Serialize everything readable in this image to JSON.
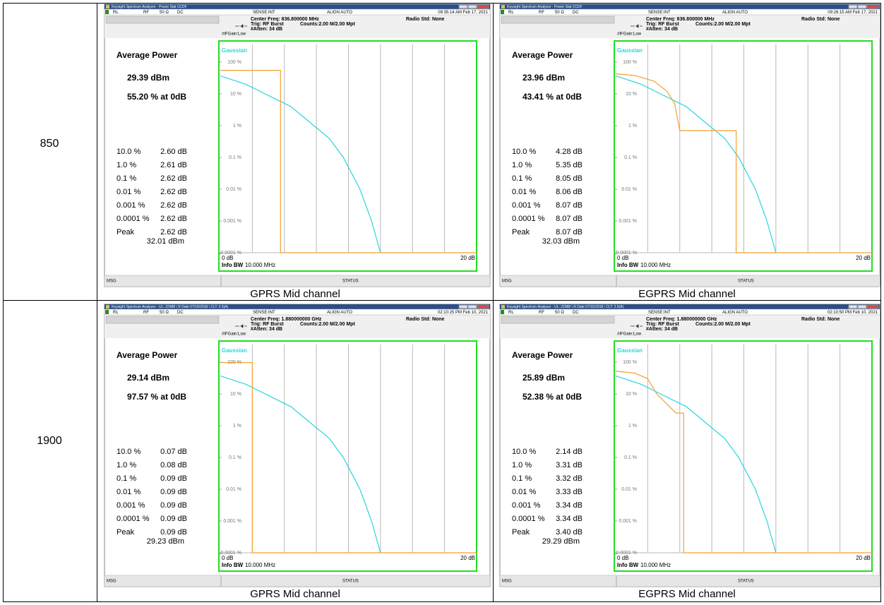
{
  "rows": [
    {
      "label": "850",
      "panels": [
        {
          "window_title": "Keysight Spectrum Analyzer - Power Stat CCDF",
          "rl": "RL",
          "rf": "RF",
          "impedance": "50 Ω",
          "coupling": "DC",
          "sense": "SENSE:INT",
          "align": "ALIGN AUTO",
          "time": "09:35:14 AM Feb 17, 2021",
          "center_freq": "Center Freq: 836.800000 MHz",
          "trig": "Trig: RF Burst",
          "counts": "Counts:2.00 M/2.00 Mpt",
          "radio_std": "Radio Std: None",
          "if_gain": "#IFGain:Low",
          "atten": "#Atten: 34 dB",
          "average_power_title": "Average Power",
          "average_power": "29.39 dBm",
          "at_0db": "55.20 % at 0dB",
          "stats": [
            [
              "10.0 %",
              "2.60 dB"
            ],
            [
              "1.0 %",
              "2.61 dB"
            ],
            [
              "0.1 %",
              "2.62 dB"
            ],
            [
              "0.01 %",
              "2.62 dB"
            ],
            [
              "0.001 %",
              "2.62 dB"
            ],
            [
              "0.0001 %",
              "2.62 dB"
            ]
          ],
          "peak_label": "Peak",
          "peak_db": "2.62 dB",
          "peak_dbm": "32.01 dBm",
          "info_bw_label": "Info BW",
          "info_bw": "10.000 MHz",
          "msg": "MSG",
          "status": "STATUS",
          "caption": "GPRS Mid channel",
          "chart_data": {
            "type": "line",
            "y_scale": "log",
            "xlim": [
              0,
              20
            ],
            "ylim": [
              0.0001,
              100
            ],
            "xticks": [
              {
                "value": 0,
                "label": "0 dB"
              },
              {
                "value": 20,
                "label": "20 dB"
              }
            ],
            "yticks": [
              {
                "value": 100,
                "label": "100 %"
              },
              {
                "value": 10,
                "label": "10 %"
              },
              {
                "value": 1,
                "label": "1 %"
              },
              {
                "value": 0.1,
                "label": "0.1 %"
              },
              {
                "value": 0.01,
                "label": "0.01 %"
              },
              {
                "value": 0.001,
                "label": "0.001 %"
              },
              {
                "value": 0.0001,
                "label": "0.0001 %"
              }
            ],
            "series": [
              {
                "name": "Gaussian",
                "color": "#2ad4e0",
                "x": [
                  0,
                  2,
                  3.5,
                  5.5,
                  7.3,
                  8.5,
                  9.6,
                  10.9,
                  11.8,
                  12.5
                ],
                "values": [
                  37,
                  20,
                  10,
                  4,
                  1,
                  0.4,
                  0.1,
                  0.01,
                  0.001,
                  0.0001
                ]
              },
              {
                "color": "#f5a030",
                "x": [
                  0,
                  4.7,
                  4.7,
                  20
                ],
                "values": [
                  55.2,
                  55.2,
                  0.0001,
                  0.0001
                ]
              }
            ]
          }
        },
        {
          "window_title": "Keysight Spectrum Analyzer - Power Stat CCDF",
          "rl": "RL",
          "rf": "RF",
          "impedance": "50 Ω",
          "coupling": "DC",
          "sense": "SENSE:INT",
          "align": "ALIGN AUTO",
          "time": "09:26:15 AM Feb 17, 2021",
          "center_freq": "Center Freq: 836.800000 MHz",
          "trig": "Trig: RF Burst",
          "counts": "Counts:2.00 M/2.00 Mpt",
          "radio_std": "Radio Std: None",
          "if_gain": "#IFGain:Low",
          "atten": "#Atten: 34 dB",
          "average_power_title": "Average Power",
          "average_power": "23.96 dBm",
          "at_0db": "43.41 % at 0dB",
          "stats": [
            [
              "10.0 %",
              "4.28 dB"
            ],
            [
              "1.0 %",
              "5.35 dB"
            ],
            [
              "0.1 %",
              "8.05 dB"
            ],
            [
              "0.01 %",
              "8.06 dB"
            ],
            [
              "0.001 %",
              "8.07 dB"
            ],
            [
              "0.0001 %",
              "8.07 dB"
            ]
          ],
          "peak_label": "Peak",
          "peak_db": "8.07 dB",
          "peak_dbm": "32.03 dBm",
          "info_bw_label": "Info BW",
          "info_bw": "10.000 MHz",
          "msg": "MSG",
          "status": "STATUS",
          "caption": "EGPRS Mid channel",
          "chart_data": {
            "type": "line",
            "y_scale": "log",
            "xlim": [
              0,
              20
            ],
            "ylim": [
              0.0001,
              100
            ],
            "xticks": [
              {
                "value": 0,
                "label": "0 dB"
              },
              {
                "value": 20,
                "label": "20 dB"
              }
            ],
            "yticks": [
              {
                "value": 100,
                "label": "100 %"
              },
              {
                "value": 10,
                "label": "10 %"
              },
              {
                "value": 1,
                "label": "1 %"
              },
              {
                "value": 0.1,
                "label": "0.1 %"
              },
              {
                "value": 0.01,
                "label": "0.01 %"
              },
              {
                "value": 0.001,
                "label": "0.001 %"
              },
              {
                "value": 0.0001,
                "label": "0.0001 %"
              }
            ],
            "series": [
              {
                "name": "Gaussian",
                "color": "#2ad4e0",
                "x": [
                  0,
                  2,
                  3.5,
                  5.5,
                  7.3,
                  8.5,
                  9.6,
                  10.9,
                  11.8,
                  12.5
                ],
                "values": [
                  37,
                  20,
                  10,
                  4,
                  1,
                  0.4,
                  0.1,
                  0.01,
                  0.001,
                  0.0001
                ]
              },
              {
                "color": "#f5a030",
                "x": [
                  0,
                  1.5,
                  3,
                  4,
                  4.6,
                  5,
                  7.1,
                  9.4,
                  9.4,
                  20
                ],
                "values": [
                  43,
                  38,
                  25,
                  12,
                  5,
                  0.7,
                  0.7,
                  0.7,
                  0.0001,
                  0.0001
                ]
              }
            ]
          }
        }
      ]
    },
    {
      "label": "1900",
      "panels": [
        {
          "window_title": "Keysight Spectrum Analyzer - UL: 22988 \\ R Date 07/15/2018 \\ CLT: 2.5(A)",
          "rl": "RL",
          "rf": "RF",
          "impedance": "50 Ω",
          "coupling": "DC",
          "sense": "SENSE:INT",
          "align": "ALIGN AUTO",
          "time": "02:10:25 PM Feb 10, 2021",
          "center_freq": "Center Freq: 1.880000000 GHz",
          "trig": "Trig: RF Burst",
          "counts": "Counts:2.00 M/2.00 Mpt",
          "radio_std": "Radio Std: None",
          "if_gain": "#IFGain:Low",
          "atten": "#Atten: 34 dB",
          "average_power_title": "Average Power",
          "average_power": "29.14 dBm",
          "at_0db": "97.57 % at 0dB",
          "stats": [
            [
              "10.0 %",
              "0.07 dB"
            ],
            [
              "1.0 %",
              "0.08 dB"
            ],
            [
              "0.1 %",
              "0.09 dB"
            ],
            [
              "0.01 %",
              "0.09 dB"
            ],
            [
              "0.001 %",
              "0.09 dB"
            ],
            [
              "0.0001 %",
              "0.09 dB"
            ]
          ],
          "peak_label": "Peak",
          "peak_db": "0.09 dB",
          "peak_dbm": "29.23 dBm",
          "info_bw_label": "Info BW",
          "info_bw": "10.000 MHz",
          "msg": "MSG",
          "status": "STATUS",
          "caption": "GPRS Mid channel",
          "chart_data": {
            "type": "line",
            "y_scale": "log",
            "xlim": [
              0,
              20
            ],
            "ylim": [
              0.0001,
              100
            ],
            "xticks": [
              {
                "value": 0,
                "label": "0 dB"
              },
              {
                "value": 20,
                "label": "20 dB"
              }
            ],
            "yticks": [
              {
                "value": 100,
                "label": "100 %"
              },
              {
                "value": 10,
                "label": "10 %"
              },
              {
                "value": 1,
                "label": "1 %"
              },
              {
                "value": 0.1,
                "label": "0.1 %"
              },
              {
                "value": 0.01,
                "label": "0.01 %"
              },
              {
                "value": 0.001,
                "label": "0.001 %"
              },
              {
                "value": 0.0001,
                "label": "0.0001 %"
              }
            ],
            "series": [
              {
                "name": "Gaussian",
                "color": "#2ad4e0",
                "x": [
                  0,
                  2,
                  3.5,
                  5.5,
                  7.3,
                  8.5,
                  9.6,
                  10.9,
                  11.8,
                  12.5
                ],
                "values": [
                  37,
                  20,
                  10,
                  4,
                  1,
                  0.4,
                  0.1,
                  0.01,
                  0.001,
                  0.0001
                ]
              },
              {
                "color": "#f5a030",
                "x": [
                  0,
                  2.5,
                  2.5,
                  20
                ],
                "values": [
                  97.57,
                  97.57,
                  0.0001,
                  0.0001
                ]
              }
            ]
          }
        },
        {
          "window_title": "Keysight Spectrum Analyzer - UL: 22988 \\ R Date 07/15/2018 \\ CLT: 2.5(A)",
          "rl": "RL",
          "rf": "RF",
          "impedance": "50 Ω",
          "coupling": "DC",
          "sense": "SENSE:INT",
          "align": "ALIGN AUTO",
          "time": "02:10:50 PM Feb 10, 2021",
          "center_freq": "Center Freq: 1.880000000 GHz",
          "trig": "Trig: RF Burst",
          "counts": "Counts:2.00 M/2.00 Mpt",
          "radio_std": "Radio Std: None",
          "if_gain": "#IFGain:Low",
          "atten": "#Atten: 34 dB",
          "average_power_title": "Average Power",
          "average_power": "25.89 dBm",
          "at_0db": "52.38 % at 0dB",
          "stats": [
            [
              "10.0 %",
              "2.14 dB"
            ],
            [
              "1.0 %",
              "3.31 dB"
            ],
            [
              "0.1 %",
              "3.32 dB"
            ],
            [
              "0.01 %",
              "3.33 dB"
            ],
            [
              "0.001 %",
              "3.34 dB"
            ],
            [
              "0.0001 %",
              "3.34 dB"
            ]
          ],
          "peak_label": "Peak",
          "peak_db": "3.40 dB",
          "peak_dbm": "29.29 dBm",
          "info_bw_label": "Info BW",
          "info_bw": "10.000 MHz",
          "msg": "MSG",
          "status": "STATUS",
          "caption": "EGPRS Mid channel",
          "chart_data": {
            "type": "line",
            "y_scale": "log",
            "xlim": [
              0,
              20
            ],
            "ylim": [
              0.0001,
              100
            ],
            "xticks": [
              {
                "value": 0,
                "label": "0 dB"
              },
              {
                "value": 20,
                "label": "20 dB"
              }
            ],
            "yticks": [
              {
                "value": 100,
                "label": "100 %"
              },
              {
                "value": 10,
                "label": "10 %"
              },
              {
                "value": 1,
                "label": "1 %"
              },
              {
                "value": 0.1,
                "label": "0.1 %"
              },
              {
                "value": 0.01,
                "label": "0.01 %"
              },
              {
                "value": 0.001,
                "label": "0.001 %"
              },
              {
                "value": 0.0001,
                "label": "0.0001 %"
              }
            ],
            "series": [
              {
                "name": "Gaussian",
                "color": "#2ad4e0",
                "x": [
                  0,
                  2,
                  3.5,
                  5.5,
                  7.3,
                  8.5,
                  9.6,
                  10.9,
                  11.8,
                  12.5
                ],
                "values": [
                  37,
                  20,
                  10,
                  4,
                  1,
                  0.4,
                  0.1,
                  0.01,
                  0.001,
                  0.0001
                ]
              },
              {
                "color": "#f5a030",
                "x": [
                  0,
                  1.5,
                  2.5,
                  3.2,
                  4.7,
                  5.3,
                  5.3,
                  20
                ],
                "values": [
                  52,
                  45,
                  30,
                  10,
                  2.5,
                  2.5,
                  0.0001,
                  0.0001
                ]
              }
            ]
          }
        }
      ]
    }
  ]
}
